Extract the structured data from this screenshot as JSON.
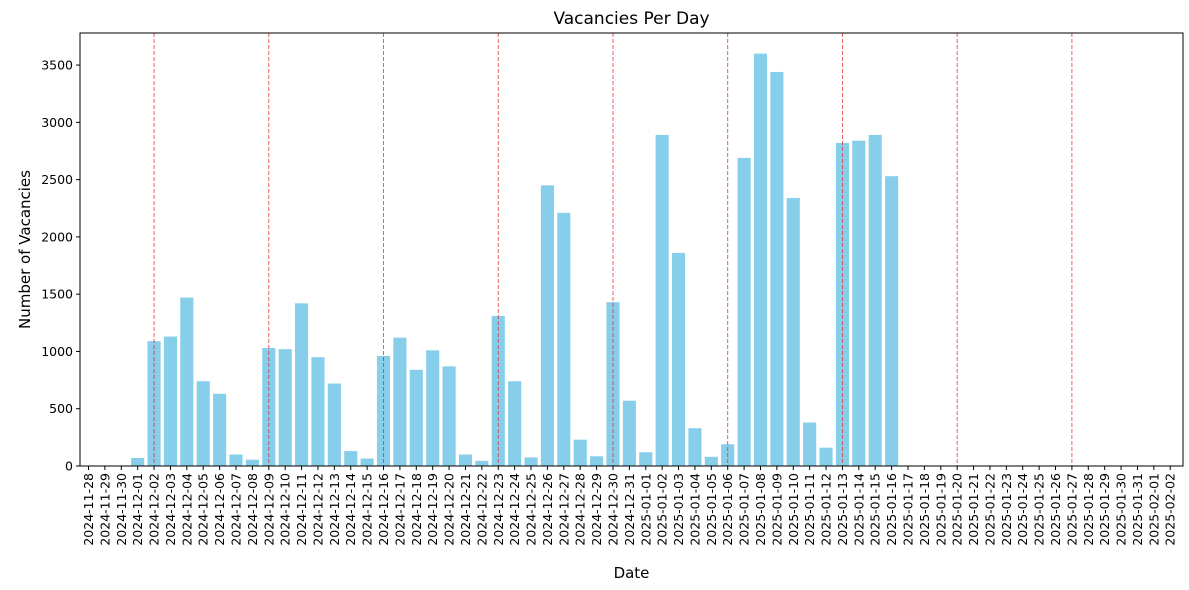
{
  "chart_data": {
    "type": "bar",
    "title": "Vacancies Per Day",
    "xlabel": "Date",
    "ylabel": "Number of Vacancies",
    "ylim": [
      0,
      3780
    ],
    "yticks": [
      0,
      500,
      1000,
      1500,
      2000,
      2500,
      3000,
      3500
    ],
    "grid": false,
    "bar_color": "#87CEEB",
    "marker_line_color": "#E03030",
    "categories": [
      "2024-11-28",
      "2024-11-29",
      "2024-11-30",
      "2024-12-01",
      "2024-12-02",
      "2024-12-03",
      "2024-12-04",
      "2024-12-05",
      "2024-12-06",
      "2024-12-07",
      "2024-12-08",
      "2024-12-09",
      "2024-12-10",
      "2024-12-11",
      "2024-12-12",
      "2024-12-13",
      "2024-12-14",
      "2024-12-15",
      "2024-12-16",
      "2024-12-17",
      "2024-12-18",
      "2024-12-19",
      "2024-12-20",
      "2024-12-21",
      "2024-12-22",
      "2024-12-23",
      "2024-12-24",
      "2024-12-25",
      "2024-12-26",
      "2024-12-27",
      "2024-12-28",
      "2024-12-29",
      "2024-12-30",
      "2024-12-31",
      "2025-01-01",
      "2025-01-02",
      "2025-01-03",
      "2025-01-04",
      "2025-01-05",
      "2025-01-06",
      "2025-01-07",
      "2025-01-08",
      "2025-01-09",
      "2025-01-10",
      "2025-01-11",
      "2025-01-12",
      "2025-01-13",
      "2025-01-14",
      "2025-01-15",
      "2025-01-16",
      "2025-01-17",
      "2025-01-18",
      "2025-01-19",
      "2025-01-20",
      "2025-01-21",
      "2025-01-22",
      "2025-01-23",
      "2025-01-24",
      "2025-01-25",
      "2025-01-26",
      "2025-01-27",
      "2025-01-28",
      "2025-01-29",
      "2025-01-30",
      "2025-01-31",
      "2025-02-01",
      "2025-02-02"
    ],
    "values": [
      0,
      0,
      0,
      70,
      1090,
      1130,
      1470,
      740,
      630,
      100,
      55,
      1030,
      1020,
      1420,
      950,
      720,
      130,
      65,
      960,
      1120,
      840,
      1010,
      870,
      100,
      45,
      1310,
      740,
      75,
      2450,
      2210,
      230,
      85,
      1430,
      570,
      120,
      2890,
      1860,
      330,
      80,
      190,
      2690,
      3600,
      3440,
      2340,
      380,
      160,
      2820,
      2840,
      2890,
      2530,
      0,
      0,
      0,
      0,
      0,
      0,
      0,
      0,
      0,
      0,
      0,
      0,
      0,
      0,
      0,
      0,
      0
    ],
    "weekly_markers": [
      "2024-12-02",
      "2024-12-09",
      "2024-12-16",
      "2024-12-23",
      "2024-12-30",
      "2025-01-06",
      "2025-01-13",
      "2025-01-20",
      "2025-01-27"
    ]
  }
}
